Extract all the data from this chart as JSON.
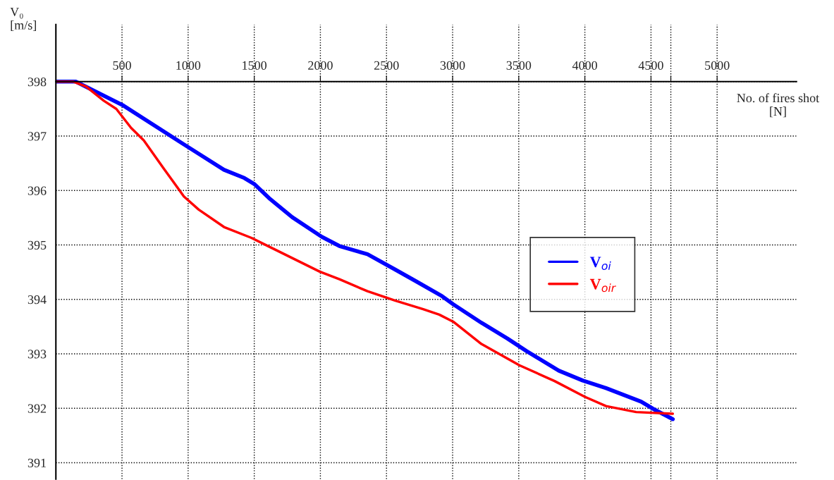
{
  "chart_data": {
    "type": "line",
    "xlabel": "No. of fires shot\n[N]",
    "ylabel": "V₀\n[m/s]",
    "xlim": [
      0,
      5600
    ],
    "ylim": [
      390.7,
      399.05
    ],
    "xticks": [
      500,
      1000,
      1500,
      2000,
      2500,
      3000,
      3500,
      4000,
      4500,
      {
        "value": 4650,
        "label": null
      },
      5000
    ],
    "yticks": [
      391,
      392,
      393,
      394,
      395,
      396,
      397,
      398
    ],
    "grid": true,
    "legend": "right",
    "line_style": "solid",
    "marker": "none",
    "series": [
      {
        "name": "V$_{oi}$",
        "color": "#0000ff",
        "x": [
          0,
          150,
          511,
          1005,
          1271,
          1425,
          1500,
          1612,
          1787,
          2011,
          2144,
          2356,
          2564,
          2718,
          2920,
          3005,
          3218,
          3415,
          3559,
          3803,
          3984,
          4160,
          4426,
          4516,
          4665
        ],
        "values": [
          398,
          398,
          397.56,
          396.79,
          396.38,
          396.23,
          396.12,
          395.86,
          395.51,
          395.15,
          394.98,
          394.83,
          394.55,
          394.34,
          394.06,
          393.91,
          393.57,
          393.28,
          393.05,
          392.69,
          392.51,
          392.37,
          392.12,
          391.99,
          391.8
        ]
      },
      {
        "name": "V$_{oir}$",
        "color": "#ff0000",
        "x": [
          0,
          133,
          229,
          362,
          457,
          569,
          665,
          814,
          968,
          1080,
          1271,
          1479,
          1612,
          1995,
          2144,
          2356,
          2564,
          2777,
          2899,
          3005,
          3218,
          3505,
          3771,
          4000,
          4160,
          4388,
          4665
        ],
        "values": [
          398,
          398,
          397.91,
          397.65,
          397.5,
          397.15,
          396.92,
          396.41,
          395.89,
          395.65,
          395.33,
          395.13,
          394.97,
          394.51,
          394.37,
          394.15,
          393.98,
          393.82,
          393.72,
          393.59,
          393.18,
          392.79,
          392.5,
          392.21,
          392.04,
          391.93,
          391.9
        ]
      }
    ]
  }
}
